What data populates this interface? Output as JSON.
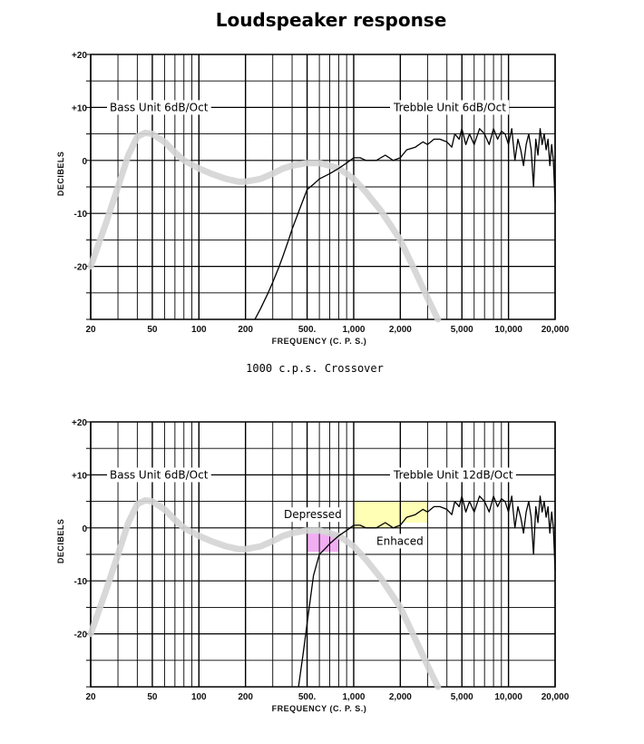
{
  "title": "Loudspeaker response",
  "middle_caption": "1000 c.p.s. Crossover",
  "colors": {
    "bass_curve": "#d4d4d4",
    "treble_curve": "#000000",
    "depressed_fill": "#f0a0f0",
    "enhanced_fill": "#ffffa8"
  },
  "chart_data": [
    {
      "type": "line",
      "xscale": "log",
      "xlim": [
        20,
        20000
      ],
      "ylim": [
        -30,
        20
      ],
      "ylabel": "DECIBELS",
      "xlabel": "FREQUENCY  (C. P. S.)",
      "x_ticks": [
        {
          "value": 20,
          "label": "20"
        },
        {
          "value": 50,
          "label": "50"
        },
        {
          "value": 100,
          "label": "100"
        },
        {
          "value": 200,
          "label": "200"
        },
        {
          "value": 500,
          "label": "500."
        },
        {
          "value": 1000,
          "label": "1,000"
        },
        {
          "value": 2000,
          "label": "2,000"
        },
        {
          "value": 5000,
          "label": "5,000"
        },
        {
          "value": 10000,
          "label": "10,000"
        },
        {
          "value": 20000,
          "label": "20,000"
        }
      ],
      "y_ticks": [
        {
          "value": 20,
          "label": "+20"
        },
        {
          "value": 10,
          "label": "+10"
        },
        {
          "value": 0,
          "label": "0"
        },
        {
          "value": -10,
          "label": "-10"
        },
        {
          "value": -20,
          "label": "-20"
        }
      ],
      "grid": true,
      "annotations": [
        "Bass Unit 6dB/Oct",
        "Trebble Unit  6dB/Oct"
      ],
      "series": [
        {
          "name": "Bass Unit 6dB/Oct",
          "x": [
            20,
            25,
            30,
            35,
            40,
            45,
            50,
            60,
            70,
            80,
            100,
            120,
            150,
            180,
            200,
            250,
            300,
            350,
            400,
            500,
            600,
            700,
            800,
            900,
            1000,
            1200,
            1500,
            2000,
            2500,
            3000,
            3500
          ],
          "y": [
            -20,
            -12,
            -5,
            1,
            4.5,
            5.2,
            5,
            3.5,
            1.5,
            0,
            -1.5,
            -2.5,
            -3.5,
            -4,
            -4,
            -3.5,
            -2.5,
            -1.5,
            -1,
            -0.5,
            -0.5,
            -1,
            -1.5,
            -2.5,
            -3.5,
            -6,
            -9.5,
            -15,
            -21,
            -26,
            -30
          ]
        },
        {
          "name": "Trebble Unit  6dB/Oct",
          "x": [
            230,
            250,
            280,
            300,
            330,
            350,
            380,
            400,
            450,
            500,
            550,
            600,
            700,
            800,
            900,
            1000,
            1100,
            1200,
            1400,
            1600,
            1800,
            2000,
            2200,
            2500,
            2800,
            3000,
            3300,
            3600,
            4000,
            4300,
            4500,
            4800,
            5000,
            5300,
            5600,
            6000,
            6500,
            7000,
            7500,
            8000,
            8500,
            9000,
            9500,
            10000,
            10500,
            11000,
            11500,
            12000,
            12500,
            13000,
            13500,
            14000,
            14500,
            15000,
            15500,
            16000,
            16500,
            17000,
            17500,
            18000,
            18500,
            19000,
            19500,
            20000
          ],
          "y": [
            -30,
            -28,
            -25,
            -23,
            -20,
            -18,
            -15,
            -13,
            -9,
            -5.5,
            -4.5,
            -3.5,
            -2.5,
            -1.5,
            -0.5,
            0.5,
            0.5,
            0,
            0,
            1,
            0,
            0.5,
            2,
            2.5,
            3.5,
            3,
            4,
            4,
            3.5,
            2.5,
            5,
            4,
            6,
            3,
            5,
            3,
            6,
            5,
            3,
            6,
            4,
            5.5,
            5,
            3,
            6,
            0,
            4,
            2,
            -1,
            3,
            5,
            2,
            -5,
            4,
            1,
            6,
            3,
            5,
            2,
            4,
            -1,
            3,
            0,
            -8
          ]
        }
      ]
    },
    {
      "type": "line",
      "xscale": "log",
      "xlim": [
        20,
        20000
      ],
      "ylim": [
        -30,
        20
      ],
      "ylabel": "DECIBELS",
      "xlabel": "FREQUENCY  (C. P. S.)",
      "x_ticks": [
        {
          "value": 20,
          "label": "20"
        },
        {
          "value": 50,
          "label": "50"
        },
        {
          "value": 100,
          "label": "100"
        },
        {
          "value": 200,
          "label": "200"
        },
        {
          "value": 500,
          "label": "500."
        },
        {
          "value": 1000,
          "label": "1,000"
        },
        {
          "value": 2000,
          "label": "2,000"
        },
        {
          "value": 5000,
          "label": "5,000"
        },
        {
          "value": 10000,
          "label": "10,000"
        },
        {
          "value": 20000,
          "label": "20,000"
        }
      ],
      "y_ticks": [
        {
          "value": 20,
          "label": "+20"
        },
        {
          "value": 10,
          "label": "+10"
        },
        {
          "value": 0,
          "label": "0"
        },
        {
          "value": -10,
          "label": "-10"
        },
        {
          "value": -20,
          "label": "-20"
        }
      ],
      "grid": true,
      "annotations": [
        "Bass Unit 6dB/Oct",
        "Trebble Unit  12dB/Oct",
        "Depressed",
        "Enhaced"
      ],
      "regions": [
        {
          "name": "Depressed",
          "x_range": [
            500,
            800
          ],
          "y_range": [
            -4.5,
            -1
          ]
        },
        {
          "name": "Enhaced",
          "x_range": [
            1000,
            2000
          ],
          "y_range": [
            0,
            5
          ]
        },
        {
          "name": "Enhaced",
          "x_range": [
            2000,
            3000
          ],
          "y_range": [
            1,
            5
          ]
        }
      ],
      "series": [
        {
          "name": "Bass Unit 6dB/Oct",
          "x": [
            20,
            25,
            30,
            35,
            40,
            45,
            50,
            60,
            70,
            80,
            100,
            120,
            150,
            180,
            200,
            250,
            300,
            350,
            400,
            500,
            600,
            700,
            800,
            900,
            1000,
            1200,
            1500,
            2000,
            2500,
            3000,
            3500
          ],
          "y": [
            -20,
            -12,
            -5,
            1,
            4.5,
            5.2,
            5,
            3.5,
            1.5,
            0,
            -1.5,
            -2.5,
            -3.5,
            -4,
            -4,
            -3.5,
            -2.5,
            -1.5,
            -1,
            -0.5,
            -0.5,
            -1,
            -1.5,
            -2.5,
            -3.5,
            -6,
            -9.5,
            -15,
            -21,
            -26,
            -30
          ]
        },
        {
          "name": "Trebble Unit  12dB/Oct",
          "x": [
            440,
            470,
            500,
            550,
            600,
            650,
            700,
            800,
            900,
            1000,
            1100,
            1200,
            1400,
            1600,
            1800,
            2000,
            2200,
            2500,
            2800,
            3000,
            3300,
            3600,
            4000,
            4300,
            4500,
            4800,
            5000,
            5300,
            5600,
            6000,
            6500,
            7000,
            7500,
            8000,
            8500,
            9000,
            9500,
            10000,
            10500,
            11000,
            11500,
            12000,
            12500,
            13000,
            13500,
            14000,
            14500,
            15000,
            15500,
            16000,
            16500,
            17000,
            17500,
            18000,
            18500,
            19000,
            19500,
            20000
          ],
          "y": [
            -30,
            -24,
            -18,
            -9,
            -5,
            -4,
            -3,
            -1.5,
            -0.5,
            0.5,
            0.5,
            0,
            0,
            1,
            0,
            0.5,
            2,
            2.5,
            3.5,
            3,
            4,
            4,
            3.5,
            2.5,
            5,
            4,
            6,
            3,
            5,
            3,
            6,
            5,
            3,
            6,
            4,
            5.5,
            5,
            3,
            6,
            0,
            4,
            2,
            -1,
            3,
            5,
            2,
            -5,
            4,
            1,
            6,
            3,
            5,
            2,
            4,
            -1,
            3,
            0,
            -8
          ]
        }
      ]
    }
  ],
  "labels": {
    "chart1": {
      "bass": "Bass Unit 6dB/Oct",
      "treble": "Trebble Unit  6dB/Oct"
    },
    "chart2": {
      "bass": "Bass Unit 6dB/Oct",
      "treble": "Trebble Unit  12dB/Oct",
      "depressed": "Depressed",
      "enhanced": "Enhaced"
    }
  }
}
